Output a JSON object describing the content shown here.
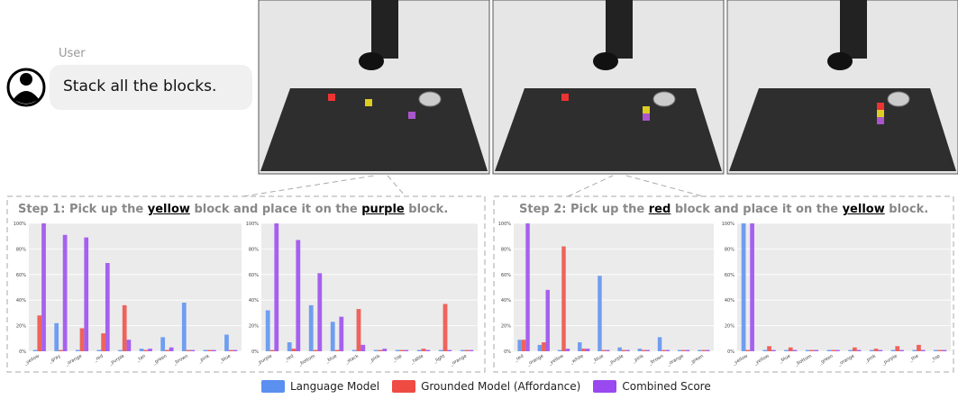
{
  "chat": {
    "role": "User",
    "message": "Stack all the blocks."
  },
  "steps": [
    {
      "parts": [
        "Step 1: Pick up the ",
        "yellow",
        " block and place it on the ",
        "purple",
        " block."
      ]
    },
    {
      "parts": [
        "Step 2: Pick up the ",
        "red",
        " block and place it on the ",
        "yellow",
        " block."
      ]
    }
  ],
  "legend": [
    {
      "name": "Language Model",
      "color": "#5b8ff0"
    },
    {
      "name": "Grounded Model (Affordance)",
      "color": "#ee4b42"
    },
    {
      "name": "Combined Score",
      "color": "#9a48f0"
    }
  ],
  "chart_data": [
    {
      "type": "bar",
      "categories": [
        "_yellow",
        "_gray",
        "_orange",
        "_red",
        "_purple",
        "_tan",
        "_green",
        "_brown",
        "_pink",
        "_blue"
      ],
      "series": [
        {
          "values": [
            1,
            22,
            1,
            1,
            1,
            2,
            11,
            38,
            1,
            13
          ]
        },
        {
          "values": [
            28,
            1,
            18,
            14,
            36,
            1,
            1,
            1,
            1,
            1
          ]
        },
        {
          "values": [
            100,
            91,
            89,
            69,
            9,
            2,
            3,
            1,
            1,
            1
          ]
        }
      ],
      "ylim": [
        0,
        100
      ],
      "yticks": [
        {
          "value": 0,
          "label": "0%"
        },
        {
          "value": 20,
          "label": "20%"
        },
        {
          "value": 40,
          "label": "40%"
        },
        {
          "value": 60,
          "label": "60%"
        },
        {
          "value": 80,
          "label": "80%"
        },
        {
          "value": 100,
          "label": "100%"
        }
      ],
      "grid": true
    },
    {
      "type": "bar",
      "categories": [
        "_purple",
        "_red",
        "_bottom",
        "_blue",
        "_stack",
        "_pink",
        "_top",
        "_table",
        "_light",
        "_orange"
      ],
      "series": [
        {
          "values": [
            32,
            7,
            36,
            23,
            1,
            1,
            1,
            1,
            1,
            1
          ]
        },
        {
          "values": [
            1,
            2,
            1,
            1,
            33,
            1,
            1,
            2,
            37,
            1
          ]
        },
        {
          "values": [
            100,
            87,
            61,
            27,
            5,
            2,
            1,
            1,
            1,
            1
          ]
        }
      ],
      "ylim": [
        0,
        100
      ],
      "yticks": [
        {
          "value": 0,
          "label": "0%"
        },
        {
          "value": 20,
          "label": "20%"
        },
        {
          "value": 40,
          "label": "40%"
        },
        {
          "value": 60,
          "label": "60%"
        },
        {
          "value": 80,
          "label": "80%"
        },
        {
          "value": 100,
          "label": "100%"
        }
      ],
      "grid": true
    },
    {
      "type": "bar",
      "categories": [
        "_red",
        "_orange",
        "_yellow",
        "_white",
        "_blue",
        "_purple",
        "_pink",
        "_brown",
        "_orange",
        "_green"
      ],
      "series": [
        {
          "values": [
            9,
            5,
            1,
            7,
            59,
            3,
            2,
            11,
            1,
            1
          ]
        },
        {
          "values": [
            9,
            7,
            82,
            2,
            1,
            1,
            1,
            1,
            1,
            1
          ]
        },
        {
          "values": [
            100,
            48,
            2,
            2,
            1,
            1,
            1,
            1,
            1,
            1
          ]
        }
      ],
      "ylim": [
        0,
        100
      ],
      "yticks": [
        {
          "value": 0,
          "label": "0%"
        },
        {
          "value": 20,
          "label": "20%"
        },
        {
          "value": 40,
          "label": "40%"
        },
        {
          "value": 60,
          "label": "60%"
        },
        {
          "value": 80,
          "label": "80%"
        },
        {
          "value": 100,
          "label": "100%"
        }
      ],
      "grid": true
    },
    {
      "type": "bar",
      "categories": [
        "_yellow",
        "_yellow",
        "_blue",
        "_bottom",
        "_green",
        "_orange",
        "_pink",
        "_purple",
        "_the",
        "_top"
      ],
      "series": [
        {
          "values": [
            100,
            1,
            1,
            1,
            1,
            1,
            1,
            1,
            1,
            1
          ]
        },
        {
          "values": [
            1,
            4,
            3,
            1,
            1,
            3,
            2,
            4,
            5,
            1
          ]
        },
        {
          "values": [
            100,
            1,
            1,
            1,
            1,
            1,
            1,
            1,
            1,
            1
          ]
        }
      ],
      "ylim": [
        0,
        100
      ],
      "yticks": [
        {
          "value": 0,
          "label": "0%"
        },
        {
          "value": 20,
          "label": "20%"
        },
        {
          "value": 40,
          "label": "40%"
        },
        {
          "value": 60,
          "label": "60%"
        },
        {
          "value": 80,
          "label": "80%"
        },
        {
          "value": 100,
          "label": "100%"
        }
      ],
      "grid": true
    }
  ]
}
